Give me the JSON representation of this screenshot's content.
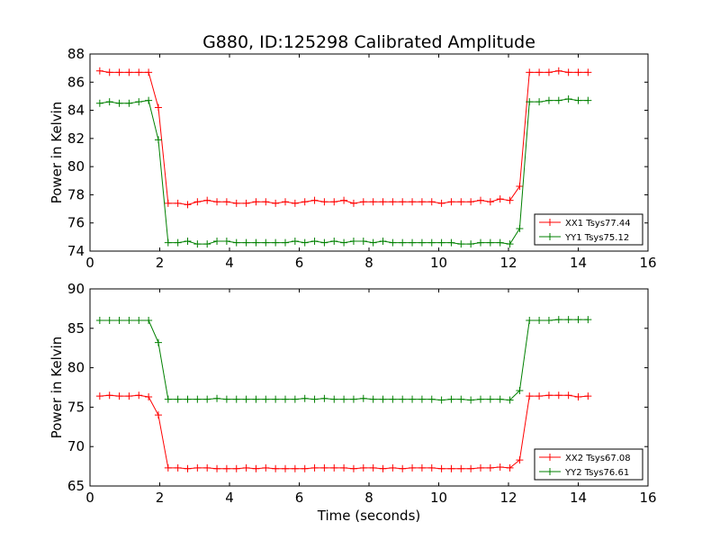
{
  "title": "G880, ID:125298 Calibrated Amplitude",
  "chart_data": [
    {
      "type": "line",
      "ylabel": "Power in Kelvin",
      "xlabel": "",
      "xlim": [
        0,
        16
      ],
      "ylim": [
        74,
        88
      ],
      "xticks": [
        "0",
        "2",
        "4",
        "6",
        "8",
        "10",
        "12",
        "14",
        "16"
      ],
      "yticks": [
        "74",
        "76",
        "78",
        "80",
        "82",
        "84",
        "86",
        "88"
      ],
      "legend_position": "lower-right",
      "x": [
        0.28,
        0.56,
        0.84,
        1.12,
        1.4,
        1.68,
        1.96,
        2.24,
        2.52,
        2.8,
        3.08,
        3.36,
        3.64,
        3.92,
        4.2,
        4.48,
        4.76,
        5.04,
        5.32,
        5.6,
        5.88,
        6.16,
        6.44,
        6.72,
        7.0,
        7.28,
        7.56,
        7.84,
        8.12,
        8.4,
        8.68,
        8.96,
        9.24,
        9.52,
        9.8,
        10.08,
        10.36,
        10.64,
        10.92,
        11.2,
        11.48,
        11.76,
        12.04,
        12.32,
        12.6,
        12.88,
        13.16,
        13.44,
        13.72,
        14.0,
        14.28
      ],
      "series": [
        {
          "name": "XX1 Tsys77.44",
          "color": "#ff0000",
          "values": [
            86.8,
            86.7,
            86.7,
            86.7,
            86.7,
            86.7,
            84.2,
            77.4,
            77.4,
            77.3,
            77.5,
            77.6,
            77.5,
            77.5,
            77.4,
            77.4,
            77.5,
            77.5,
            77.4,
            77.5,
            77.4,
            77.5,
            77.6,
            77.5,
            77.5,
            77.6,
            77.4,
            77.5,
            77.5,
            77.5,
            77.5,
            77.5,
            77.5,
            77.5,
            77.5,
            77.4,
            77.5,
            77.5,
            77.5,
            77.6,
            77.5,
            77.7,
            77.6,
            78.6,
            86.7,
            86.7,
            86.7,
            86.8,
            86.7,
            86.7,
            86.7
          ]
        },
        {
          "name": "YY1 Tsys75.12",
          "color": "#008000",
          "values": [
            84.5,
            84.6,
            84.5,
            84.5,
            84.6,
            84.7,
            81.9,
            74.6,
            74.6,
            74.7,
            74.5,
            74.5,
            74.7,
            74.7,
            74.6,
            74.6,
            74.6,
            74.6,
            74.6,
            74.6,
            74.7,
            74.6,
            74.7,
            74.6,
            74.7,
            74.6,
            74.7,
            74.7,
            74.6,
            74.7,
            74.6,
            74.6,
            74.6,
            74.6,
            74.6,
            74.6,
            74.6,
            74.5,
            74.5,
            74.6,
            74.6,
            74.6,
            74.5,
            75.6,
            84.6,
            84.6,
            84.7,
            84.7,
            84.8,
            84.7,
            84.7
          ]
        }
      ]
    },
    {
      "type": "line",
      "ylabel": "Power in Kelvin",
      "xlabel": "Time (seconds)",
      "xlim": [
        0,
        16
      ],
      "ylim": [
        65,
        90
      ],
      "xticks": [
        "0",
        "2",
        "4",
        "6",
        "8",
        "10",
        "12",
        "14",
        "16"
      ],
      "yticks": [
        "65",
        "70",
        "75",
        "80",
        "85",
        "90"
      ],
      "legend_position": "lower-right",
      "x": [
        0.28,
        0.56,
        0.84,
        1.12,
        1.4,
        1.68,
        1.96,
        2.24,
        2.52,
        2.8,
        3.08,
        3.36,
        3.64,
        3.92,
        4.2,
        4.48,
        4.76,
        5.04,
        5.32,
        5.6,
        5.88,
        6.16,
        6.44,
        6.72,
        7.0,
        7.28,
        7.56,
        7.84,
        8.12,
        8.4,
        8.68,
        8.96,
        9.24,
        9.52,
        9.8,
        10.08,
        10.36,
        10.64,
        10.92,
        11.2,
        11.48,
        11.76,
        12.04,
        12.32,
        12.6,
        12.88,
        13.16,
        13.44,
        13.72,
        14.0,
        14.28
      ],
      "series": [
        {
          "name": "XX2 Tsys67.08",
          "color": "#ff0000",
          "values": [
            76.4,
            76.5,
            76.4,
            76.4,
            76.5,
            76.3,
            74.0,
            67.3,
            67.3,
            67.2,
            67.3,
            67.3,
            67.2,
            67.2,
            67.2,
            67.3,
            67.2,
            67.3,
            67.2,
            67.2,
            67.2,
            67.2,
            67.3,
            67.3,
            67.3,
            67.3,
            67.2,
            67.3,
            67.3,
            67.2,
            67.3,
            67.2,
            67.3,
            67.3,
            67.3,
            67.2,
            67.2,
            67.2,
            67.2,
            67.3,
            67.3,
            67.4,
            67.3,
            68.3,
            76.4,
            76.4,
            76.5,
            76.5,
            76.5,
            76.3,
            76.4
          ]
        },
        {
          "name": "YY2 Tsys76.61",
          "color": "#008000",
          "values": [
            86.0,
            86.0,
            86.0,
            86.0,
            86.0,
            86.0,
            83.2,
            76.0,
            76.0,
            76.0,
            76.0,
            76.0,
            76.1,
            76.0,
            76.0,
            76.0,
            76.0,
            76.0,
            76.0,
            76.0,
            76.0,
            76.1,
            76.0,
            76.1,
            76.0,
            76.0,
            76.0,
            76.1,
            76.0,
            76.0,
            76.0,
            76.0,
            76.0,
            76.0,
            76.0,
            75.9,
            76.0,
            76.0,
            75.9,
            76.0,
            76.0,
            76.0,
            75.9,
            77.1,
            86.0,
            86.0,
            86.0,
            86.1,
            86.1,
            86.1,
            86.1
          ]
        }
      ]
    }
  ]
}
